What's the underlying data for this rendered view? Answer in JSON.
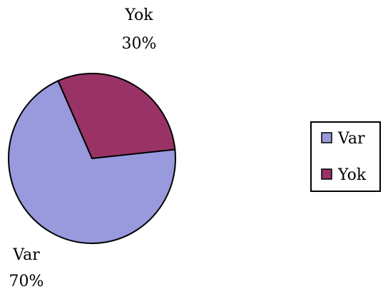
{
  "chart_data": {
    "type": "pie",
    "slices": [
      {
        "label": "Var",
        "value": 70,
        "percent_label": "70%",
        "color": "#9999dd"
      },
      {
        "label": "Yok",
        "value": 30,
        "percent_label": "30%",
        "color": "#993366"
      }
    ],
    "legend": {
      "placement": "right",
      "entries": [
        "Var",
        "Yok"
      ]
    },
    "title": "",
    "border_color": "#000000"
  }
}
